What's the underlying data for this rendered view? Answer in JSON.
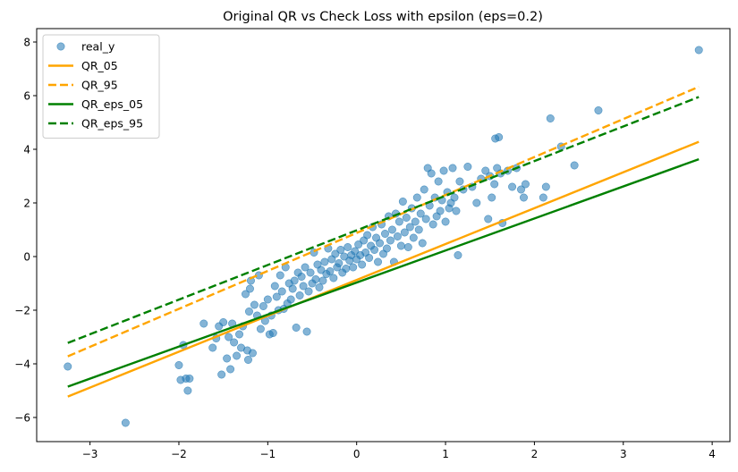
{
  "chart_data": {
    "type": "scatter",
    "title": "Original QR vs Check Loss with epsilon (eps=0.2)",
    "xlabel": "",
    "ylabel": "",
    "xlim": [
      -3.6,
      4.2
    ],
    "ylim": [
      -6.9,
      8.5
    ],
    "xticks": [
      -3,
      -2,
      -1,
      0,
      1,
      2,
      3,
      4
    ],
    "yticks": [
      -6,
      -4,
      -2,
      0,
      2,
      4,
      6,
      8
    ],
    "xtick_labels": [
      "−3",
      "−2",
      "−1",
      "0",
      "1",
      "2",
      "3",
      "4"
    ],
    "ytick_labels": [
      "−6",
      "−4",
      "−2",
      "0",
      "2",
      "4",
      "6",
      "8"
    ],
    "grid": false,
    "legend_position": "top-left",
    "scatter": {
      "name": "real_y",
      "color": "#1f77b4",
      "points": [
        [
          -3.25,
          -4.1
        ],
        [
          -2.6,
          -6.2
        ],
        [
          -2.0,
          -4.05
        ],
        [
          -1.98,
          -4.6
        ],
        [
          -1.95,
          -3.3
        ],
        [
          -1.92,
          -4.55
        ],
        [
          -1.9,
          -5.0
        ],
        [
          -1.88,
          -4.55
        ],
        [
          -1.72,
          -2.5
        ],
        [
          -1.62,
          -3.4
        ],
        [
          -1.58,
          -3.05
        ],
        [
          -1.55,
          -2.6
        ],
        [
          -1.52,
          -4.4
        ],
        [
          -1.5,
          -2.45
        ],
        [
          -1.46,
          -3.8
        ],
        [
          -1.44,
          -3.0
        ],
        [
          -1.42,
          -4.2
        ],
        [
          -1.4,
          -2.5
        ],
        [
          -1.38,
          -3.2
        ],
        [
          -1.35,
          -3.7
        ],
        [
          -1.32,
          -2.9
        ],
        [
          -1.3,
          -3.4
        ],
        [
          -1.28,
          -2.6
        ],
        [
          -1.25,
          -1.4
        ],
        [
          -1.23,
          -3.5
        ],
        [
          -1.22,
          -3.85
        ],
        [
          -1.21,
          -2.05
        ],
        [
          -1.2,
          -1.2
        ],
        [
          -1.19,
          -0.9
        ],
        [
          -1.17,
          -3.6
        ],
        [
          -1.15,
          -1.8
        ],
        [
          -1.12,
          -2.2
        ],
        [
          -1.1,
          -0.7
        ],
        [
          -1.08,
          -2.7
        ],
        [
          -1.05,
          -1.85
        ],
        [
          -1.03,
          -2.4
        ],
        [
          -1.0,
          -1.6
        ],
        [
          -0.98,
          -2.9
        ],
        [
          -0.96,
          -2.2
        ],
        [
          -0.94,
          -2.85
        ],
        [
          -0.92,
          -1.1
        ],
        [
          -0.9,
          -1.5
        ],
        [
          -0.88,
          -2.0
        ],
        [
          -0.86,
          -0.7
        ],
        [
          -0.84,
          -1.3
        ],
        [
          -0.82,
          -1.95
        ],
        [
          -0.8,
          -0.4
        ],
        [
          -0.78,
          -1.75
        ],
        [
          -0.76,
          -1.0
        ],
        [
          -0.74,
          -1.6
        ],
        [
          -0.72,
          -1.2
        ],
        [
          -0.7,
          -0.9
        ],
        [
          -0.68,
          -2.65
        ],
        [
          -0.66,
          -0.6
        ],
        [
          -0.64,
          -1.45
        ],
        [
          -0.62,
          -0.75
        ],
        [
          -0.6,
          -1.1
        ],
        [
          -0.58,
          -0.4
        ],
        [
          -0.56,
          -2.8
        ],
        [
          -0.54,
          -1.3
        ],
        [
          -0.52,
          -0.6
        ],
        [
          -0.5,
          -1.0
        ],
        [
          -0.48,
          0.15
        ],
        [
          -0.46,
          -0.85
        ],
        [
          -0.44,
          -0.3
        ],
        [
          -0.42,
          -1.15
        ],
        [
          -0.4,
          -0.5
        ],
        [
          -0.38,
          -0.9
        ],
        [
          -0.36,
          -0.2
        ],
        [
          -0.34,
          -0.65
        ],
        [
          -0.32,
          0.3
        ],
        [
          -0.3,
          -0.55
        ],
        [
          -0.28,
          -0.1
        ],
        [
          -0.26,
          -0.8
        ],
        [
          -0.24,
          0.1
        ],
        [
          -0.22,
          -0.4
        ],
        [
          -0.2,
          -0.25
        ],
        [
          -0.18,
          0.25
        ],
        [
          -0.16,
          -0.6
        ],
        [
          -0.14,
          0.0
        ],
        [
          -0.12,
          -0.45
        ],
        [
          -0.1,
          0.35
        ],
        [
          -0.08,
          -0.15
        ],
        [
          -0.06,
          0.05
        ],
        [
          -0.04,
          -0.4
        ],
        [
          -0.02,
          0.2
        ],
        [
          0.0,
          -0.1
        ],
        [
          0.02,
          0.45
        ],
        [
          0.04,
          0.05
        ],
        [
          0.06,
          -0.3
        ],
        [
          0.08,
          0.6
        ],
        [
          0.1,
          0.15
        ],
        [
          0.12,
          0.8
        ],
        [
          0.14,
          -0.05
        ],
        [
          0.16,
          0.4
        ],
        [
          0.18,
          1.1
        ],
        [
          0.2,
          0.25
        ],
        [
          0.22,
          0.7
        ],
        [
          0.24,
          -0.2
        ],
        [
          0.26,
          0.5
        ],
        [
          0.28,
          1.2
        ],
        [
          0.3,
          0.1
        ],
        [
          0.32,
          0.85
        ],
        [
          0.34,
          0.3
        ],
        [
          0.36,
          1.5
        ],
        [
          0.38,
          0.6
        ],
        [
          0.4,
          1.0
        ],
        [
          0.42,
          -0.2
        ],
        [
          0.44,
          1.6
        ],
        [
          0.46,
          0.75
        ],
        [
          0.48,
          1.3
        ],
        [
          0.5,
          0.4
        ],
        [
          0.52,
          2.05
        ],
        [
          0.54,
          0.9
        ],
        [
          0.56,
          1.45
        ],
        [
          0.58,
          0.35
        ],
        [
          0.6,
          1.1
        ],
        [
          0.62,
          1.8
        ],
        [
          0.64,
          0.7
        ],
        [
          0.66,
          1.3
        ],
        [
          0.68,
          2.2
        ],
        [
          0.7,
          1.0
        ],
        [
          0.72,
          1.6
        ],
        [
          0.74,
          0.5
        ],
        [
          0.76,
          2.5
        ],
        [
          0.78,
          1.4
        ],
        [
          0.8,
          3.3
        ],
        [
          0.82,
          1.9
        ],
        [
          0.84,
          3.1
        ],
        [
          0.86,
          1.2
        ],
        [
          0.88,
          2.2
        ],
        [
          0.9,
          1.5
        ],
        [
          0.92,
          2.8
        ],
        [
          0.94,
          1.7
        ],
        [
          0.96,
          2.1
        ],
        [
          0.98,
          3.2
        ],
        [
          1.0,
          1.3
        ],
        [
          1.02,
          2.4
        ],
        [
          1.04,
          1.8
        ],
        [
          1.06,
          2.0
        ],
        [
          1.08,
          3.3
        ],
        [
          1.1,
          2.2
        ],
        [
          1.12,
          1.7
        ],
        [
          1.14,
          0.05
        ],
        [
          1.16,
          2.8
        ],
        [
          1.2,
          2.5
        ],
        [
          1.25,
          3.35
        ],
        [
          1.3,
          2.6
        ],
        [
          1.35,
          2.0
        ],
        [
          1.4,
          2.9
        ],
        [
          1.45,
          3.2
        ],
        [
          1.48,
          1.4
        ],
        [
          1.5,
          3.0
        ],
        [
          1.52,
          2.2
        ],
        [
          1.55,
          2.7
        ],
        [
          1.56,
          4.4
        ],
        [
          1.58,
          3.3
        ],
        [
          1.6,
          4.45
        ],
        [
          1.62,
          3.1
        ],
        [
          1.64,
          1.25
        ],
        [
          1.7,
          3.2
        ],
        [
          1.75,
          2.6
        ],
        [
          1.8,
          3.3
        ],
        [
          1.85,
          2.5
        ],
        [
          1.88,
          2.2
        ],
        [
          1.9,
          2.7
        ],
        [
          2.1,
          2.2
        ],
        [
          2.13,
          2.6
        ],
        [
          2.18,
          5.15
        ],
        [
          2.3,
          4.1
        ],
        [
          2.45,
          3.4
        ],
        [
          2.72,
          5.45
        ],
        [
          3.85,
          7.7
        ]
      ]
    },
    "series": [
      {
        "name": "QR_05",
        "color": "#ffa500",
        "dash": "solid",
        "x": [
          -3.25,
          3.85
        ],
        "y": [
          -5.22,
          4.28
        ]
      },
      {
        "name": "QR_95",
        "color": "#ffa500",
        "dash": "dashed",
        "x": [
          -3.25,
          3.85
        ],
        "y": [
          -3.72,
          6.33
        ]
      },
      {
        "name": "QR_eps_05",
        "color": "#008000",
        "dash": "solid",
        "x": [
          -3.25,
          3.85
        ],
        "y": [
          -4.85,
          3.63
        ]
      },
      {
        "name": "QR_eps_95",
        "color": "#008000",
        "dash": "dashed",
        "x": [
          -3.25,
          3.85
        ],
        "y": [
          -3.22,
          5.95
        ]
      }
    ]
  }
}
